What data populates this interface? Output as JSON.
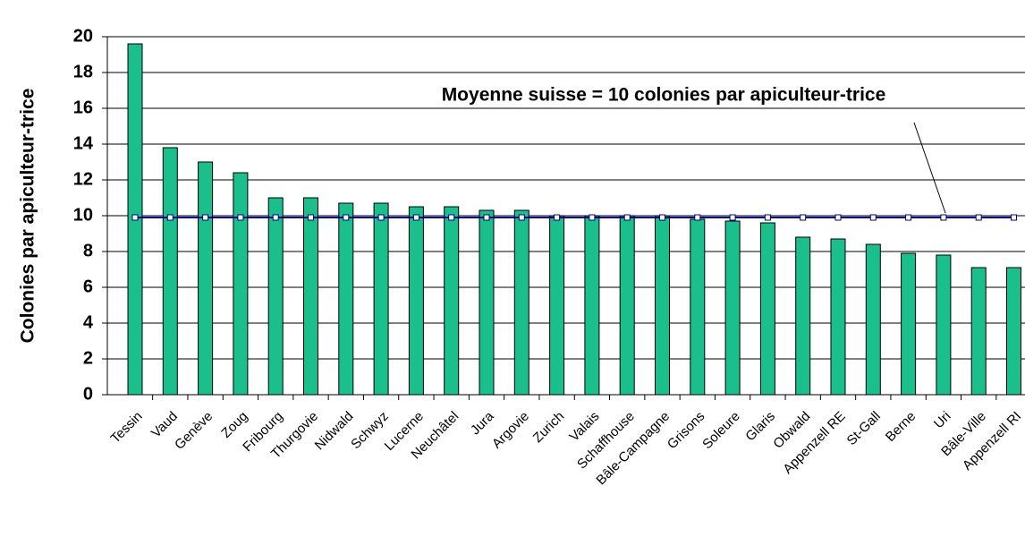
{
  "chart_data": {
    "type": "bar",
    "y_label": "Colonies par apiculteur-trice",
    "annotation": "Moyenne suisse = 10 colonies par apiculteur-trice",
    "categories": [
      "Tessin",
      "Vaud",
      "Genève",
      "Zoug",
      "Fribourg",
      "Thurgovie",
      "Nidwald",
      "Schwyz",
      "Lucerne",
      "Neuchâtel",
      "Jura",
      "Argovie",
      "Zurich",
      "Valais",
      "Schaffhouse",
      "Bâle-Campagne",
      "Grisons",
      "Soleure",
      "Glaris",
      "Obwald",
      "Appenzell RE",
      "St-Gall",
      "Berne",
      "Uri",
      "Bâle-Ville",
      "Appenzell RI"
    ],
    "series": [
      {
        "type": "bar",
        "color": "#1abf8b",
        "values": [
          19.6,
          13.8,
          13.0,
          12.4,
          11.0,
          11.0,
          10.7,
          10.7,
          10.5,
          10.5,
          10.3,
          10.3,
          10.0,
          10.0,
          10.0,
          10.0,
          9.8,
          9.7,
          9.6,
          8.8,
          8.7,
          8.4,
          7.9,
          7.8,
          7.1,
          7.1
        ]
      },
      {
        "type": "line",
        "color": "#00008b",
        "values": [
          9.9,
          9.9,
          9.9,
          9.9,
          9.9,
          9.9,
          9.9,
          9.9,
          9.9,
          9.9,
          9.9,
          9.9,
          9.9,
          9.9,
          9.9,
          9.9,
          9.9,
          9.9,
          9.9,
          9.9,
          9.9,
          9.9,
          9.9,
          9.9,
          9.9,
          9.9
        ]
      }
    ],
    "ylim": [
      0,
      20
    ],
    "yticks": [
      0,
      2,
      4,
      6,
      8,
      10,
      12,
      14,
      16,
      18,
      20
    ],
    "grid": true
  }
}
